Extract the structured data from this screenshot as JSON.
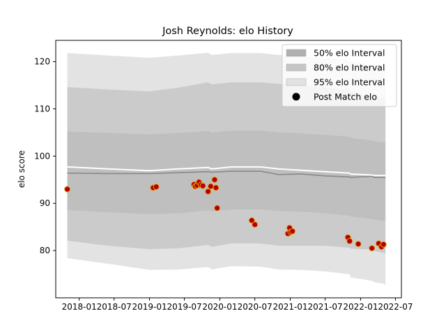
{
  "chart_data": {
    "type": "line",
    "title": "Josh Reynolds: elo History",
    "xlabel": "",
    "ylabel": "elo score",
    "xlim": [
      "2017-09-01",
      "2022-08-01"
    ],
    "ylim": [
      70,
      124.5
    ],
    "x_tick_labels": [
      "2018-01",
      "2018-07",
      "2019-01",
      "2019-07",
      "2020-01",
      "2020-07",
      "2021-01",
      "2021-07",
      "2022-01",
      "2022-07"
    ],
    "x_tick_dates": [
      "2018-01-01",
      "2018-07-01",
      "2019-01-01",
      "2019-07-01",
      "2020-01-01",
      "2020-07-01",
      "2021-01-01",
      "2021-07-01",
      "2022-01-01",
      "2022-07-01"
    ],
    "y_ticks": [
      80,
      90,
      100,
      110,
      120
    ],
    "grid": false,
    "legend_position": "top-right",
    "legend": [
      {
        "label": "50% elo Interval",
        "color": "#b0b0b0",
        "kind": "patch"
      },
      {
        "label": "80% elo Interval",
        "color": "#c6c6c6",
        "kind": "patch"
      },
      {
        "label": "95% elo Interval",
        "color": "#e2e2e2",
        "kind": "patch"
      },
      {
        "label": "Post Match elo",
        "color": "#000000",
        "kind": "marker"
      }
    ],
    "colors": {
      "band95": "#e3e3e3",
      "band80": "#cbcbcb",
      "band50": "#bfbfbf",
      "mean_line": "#ffffff",
      "median_line": "#888888",
      "point_fill": "#b50000",
      "point_edge": "#e0a020"
    },
    "series": [
      {
        "name": "95% elo Interval",
        "x": [
          "2017-10-31",
          "2018-06-01",
          "2019-01-01",
          "2019-06-01",
          "2019-11-01",
          "2019-11-20",
          "2020-03-01",
          "2020-08-01",
          "2020-11-01",
          "2021-03-01",
          "2021-07-01",
          "2021-11-05",
          "2021-11-10",
          "2022-01-01",
          "2022-03-01",
          "2022-03-15",
          "2022-05-01",
          "2022-05-10"
        ],
        "upper": [
          121.8,
          121.3,
          120.8,
          121.3,
          121.9,
          121.4,
          121.8,
          121.8,
          121.4,
          121.1,
          120.8,
          120.3,
          120.0,
          119.6,
          119.2,
          119.0,
          118.8,
          118.6
        ],
        "lower": [
          78.4,
          77.2,
          75.9,
          76.0,
          76.5,
          76.0,
          76.7,
          76.6,
          76.0,
          75.9,
          75.6,
          75.0,
          74.3,
          74.0,
          73.6,
          73.3,
          73.0,
          72.6
        ]
      },
      {
        "name": "80% elo Interval",
        "x": [
          "2017-10-31",
          "2018-06-01",
          "2019-01-01",
          "2019-06-01",
          "2019-11-01",
          "2019-11-20",
          "2020-03-01",
          "2020-08-01",
          "2020-11-01",
          "2021-03-01",
          "2021-07-01",
          "2021-11-05",
          "2021-11-10",
          "2022-01-01",
          "2022-03-01",
          "2022-03-15",
          "2022-05-01",
          "2022-05-10"
        ],
        "upper": [
          114.6,
          114.1,
          113.7,
          114.5,
          115.6,
          115.2,
          115.6,
          115.6,
          115.3,
          115.0,
          114.6,
          114.0,
          113.7,
          113.2,
          112.8,
          112.5,
          112.3,
          112.2
        ],
        "lower": [
          82.1,
          81.0,
          80.3,
          80.5,
          81.2,
          80.8,
          81.5,
          81.5,
          81.0,
          81.0,
          81.0,
          80.6,
          80.4,
          80.3,
          80.3,
          79.9,
          79.5,
          79.3
        ]
      },
      {
        "name": "50% elo Interval",
        "x": [
          "2017-10-31",
          "2018-06-01",
          "2019-01-01",
          "2019-06-01",
          "2019-11-01",
          "2019-11-20",
          "2020-03-01",
          "2020-08-01",
          "2020-11-01",
          "2021-03-01",
          "2021-07-01",
          "2021-11-05",
          "2021-11-10",
          "2022-01-01",
          "2022-03-01",
          "2022-03-15",
          "2022-05-01",
          "2022-05-10"
        ],
        "upper": [
          105.2,
          104.9,
          104.6,
          104.9,
          105.3,
          105.0,
          105.4,
          105.4,
          105.0,
          104.8,
          104.5,
          104.1,
          103.9,
          103.6,
          103.3,
          103.1,
          102.9,
          102.8
        ],
        "lower": [
          88.6,
          88.1,
          87.7,
          87.9,
          88.5,
          88.3,
          88.7,
          88.7,
          88.4,
          88.2,
          87.9,
          87.4,
          87.2,
          87.0,
          86.7,
          86.5,
          86.3,
          86.2
        ]
      },
      {
        "name": "mean",
        "x": [
          "2017-10-31",
          "2018-06-01",
          "2019-01-01",
          "2019-06-01",
          "2019-11-01",
          "2019-11-20",
          "2020-03-01",
          "2020-08-01",
          "2020-11-01",
          "2021-03-01",
          "2021-07-01",
          "2021-11-05",
          "2021-11-10",
          "2022-01-01",
          "2022-03-01",
          "2022-03-15",
          "2022-05-01",
          "2022-05-10"
        ],
        "values": [
          97.7,
          97.3,
          96.9,
          97.3,
          97.6,
          97.3,
          97.7,
          97.7,
          97.3,
          97.0,
          96.7,
          96.4,
          96.2,
          96.1,
          96.0,
          95.9,
          95.9,
          95.9
        ]
      },
      {
        "name": "median",
        "x": [
          "2017-10-31",
          "2018-06-01",
          "2019-01-01",
          "2019-06-01",
          "2019-11-01",
          "2019-11-20",
          "2020-03-01",
          "2020-08-01",
          "2020-11-01",
          "2021-03-01",
          "2021-07-01",
          "2021-11-05",
          "2021-11-10",
          "2022-01-01",
          "2022-03-01",
          "2022-03-15",
          "2022-05-01",
          "2022-05-10"
        ],
        "values": [
          96.4,
          96.3,
          96.3,
          96.5,
          96.7,
          96.6,
          96.8,
          96.8,
          96.1,
          96.2,
          95.8,
          95.6,
          95.5,
          95.6,
          95.7,
          95.5,
          95.5,
          95.4
        ]
      },
      {
        "name": "Post Match elo",
        "points": [
          {
            "x": "2017-10-31",
            "y": 93.0
          },
          {
            "x": "2019-01-20",
            "y": 93.3
          },
          {
            "x": "2019-02-05",
            "y": 93.5
          },
          {
            "x": "2019-08-20",
            "y": 94.0
          },
          {
            "x": "2019-08-27",
            "y": 93.6
          },
          {
            "x": "2019-09-05",
            "y": 93.8
          },
          {
            "x": "2019-09-15",
            "y": 94.5
          },
          {
            "x": "2019-09-25",
            "y": 93.9
          },
          {
            "x": "2019-10-05",
            "y": 93.7
          },
          {
            "x": "2019-11-01",
            "y": 92.5
          },
          {
            "x": "2019-11-15",
            "y": 93.6
          },
          {
            "x": "2019-12-05",
            "y": 95.0
          },
          {
            "x": "2019-12-12",
            "y": 93.3
          },
          {
            "x": "2019-12-18",
            "y": 89.0
          },
          {
            "x": "2020-06-15",
            "y": 86.4
          },
          {
            "x": "2020-07-01",
            "y": 85.5
          },
          {
            "x": "2020-12-20",
            "y": 83.6
          },
          {
            "x": "2020-12-28",
            "y": 84.8
          },
          {
            "x": "2021-01-03",
            "y": 83.9
          },
          {
            "x": "2021-01-12",
            "y": 84.1
          },
          {
            "x": "2021-10-27",
            "y": 82.8
          },
          {
            "x": "2021-11-05",
            "y": 82.0
          },
          {
            "x": "2021-12-20",
            "y": 81.4
          },
          {
            "x": "2022-03-01",
            "y": 80.5
          },
          {
            "x": "2022-04-05",
            "y": 81.5
          },
          {
            "x": "2022-04-20",
            "y": 80.8
          },
          {
            "x": "2022-04-30",
            "y": 81.3
          }
        ]
      }
    ]
  }
}
